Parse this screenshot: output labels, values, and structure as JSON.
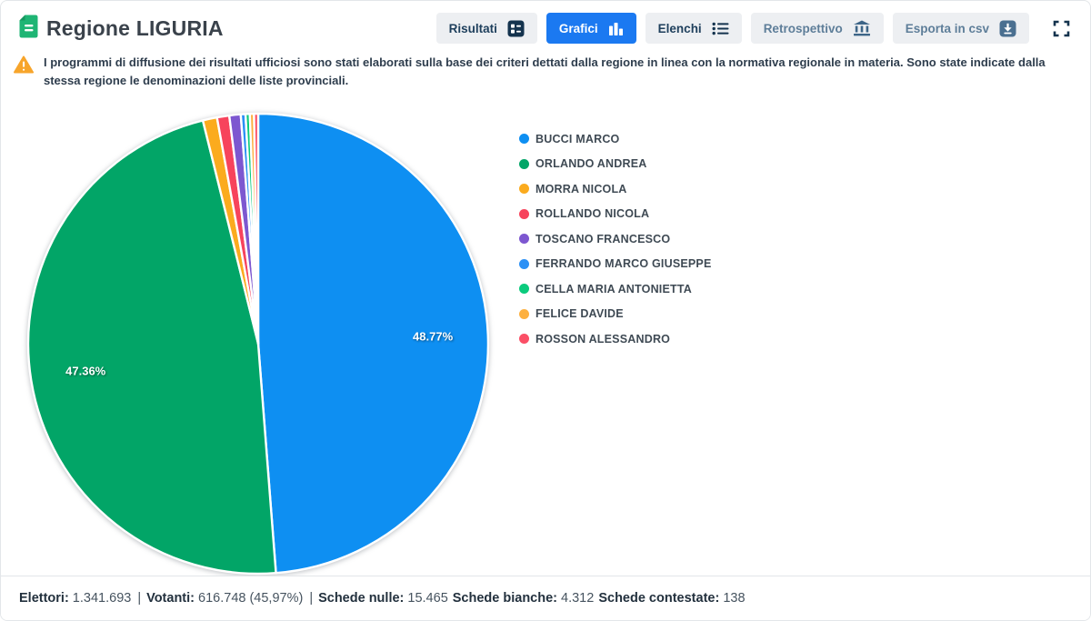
{
  "header": {
    "title": "Regione LIGURIA",
    "tabs": [
      {
        "label": "Risultati",
        "icon": "results-grid-icon",
        "state": "default"
      },
      {
        "label": "Grafici",
        "icon": "bar-chart-icon",
        "state": "active"
      },
      {
        "label": "Elenchi",
        "icon": "list-icon",
        "state": "default"
      },
      {
        "label": "Retrospettivo",
        "icon": "museum-icon",
        "state": "muted"
      },
      {
        "label": "Esporta in csv",
        "icon": "download-icon",
        "state": "muted"
      }
    ],
    "fullscreen_icon": "fullscreen-icon"
  },
  "notice": {
    "icon": "warning-triangle-icon",
    "text": "I programmi di diffusione dei risultati ufficiosi sono stati elaborati sulla base dei criteri dettati dalla regione in linea con la normativa regionale in materia. Sono state indicate dalla stessa regione le denominazioni delle liste provinciali."
  },
  "chart_data": {
    "type": "pie",
    "legend_position": "right",
    "start_angle_deg": 0,
    "direction": "clockwise",
    "slice_border_color": "#ffffff",
    "labels_shown": [
      "48.77%",
      "47.36%"
    ],
    "series": [
      {
        "name": "BUCCI MARCO",
        "value": 48.77,
        "label": "48.77%",
        "color": "#0e8ff2"
      },
      {
        "name": "ORLANDO ANDREA",
        "value": 47.36,
        "label": "47.36%",
        "color": "#02a567"
      },
      {
        "name": "MORRA NICOLA",
        "value": 1.0,
        "label": "",
        "color": "#fbab1e"
      },
      {
        "name": "ROLLANDO NICOLA",
        "value": 0.86,
        "label": "",
        "color": "#f7435c"
      },
      {
        "name": "TOSCANO FRANCESCO",
        "value": 0.8,
        "label": "",
        "color": "#7d57d0"
      },
      {
        "name": "FERRANDO MARCO GIUSEPPE",
        "value": 0.33,
        "label": "",
        "color": "#2b90f5"
      },
      {
        "name": "CELLA MARIA ANTONIETTA",
        "value": 0.3,
        "label": "",
        "color": "#0bcb7d"
      },
      {
        "name": "FELICE DAVIDE",
        "value": 0.29,
        "label": "",
        "color": "#fdb03f"
      },
      {
        "name": "ROSSON ALESSANDRO",
        "value": 0.29,
        "label": "",
        "color": "#fb4f66"
      }
    ]
  },
  "footer": {
    "stats": [
      {
        "label": "Elettori:",
        "value": "1.341.693",
        "sep": "|"
      },
      {
        "label": "Votanti:",
        "value": "616.748 (45,97%)",
        "sep": "|"
      },
      {
        "label": "Schede nulle:",
        "value": "15.465",
        "sep": ""
      },
      {
        "label": "Schede bianche:",
        "value": "4.312",
        "sep": ""
      },
      {
        "label": "Schede contestate:",
        "value": "138",
        "sep": ""
      }
    ]
  },
  "colors": {
    "active_tab_bg": "#1b79f1",
    "tab_bg": "#edeff2",
    "tab_text": "#1e3f5c",
    "muted_tab_text": "#5e7e99",
    "icon_navy": "#14334e",
    "icon_slate": "#4a6f90",
    "warning_orange": "#f7a52b",
    "doc_icon_green": "#1eb574",
    "page_border": "#e3e6e9"
  }
}
